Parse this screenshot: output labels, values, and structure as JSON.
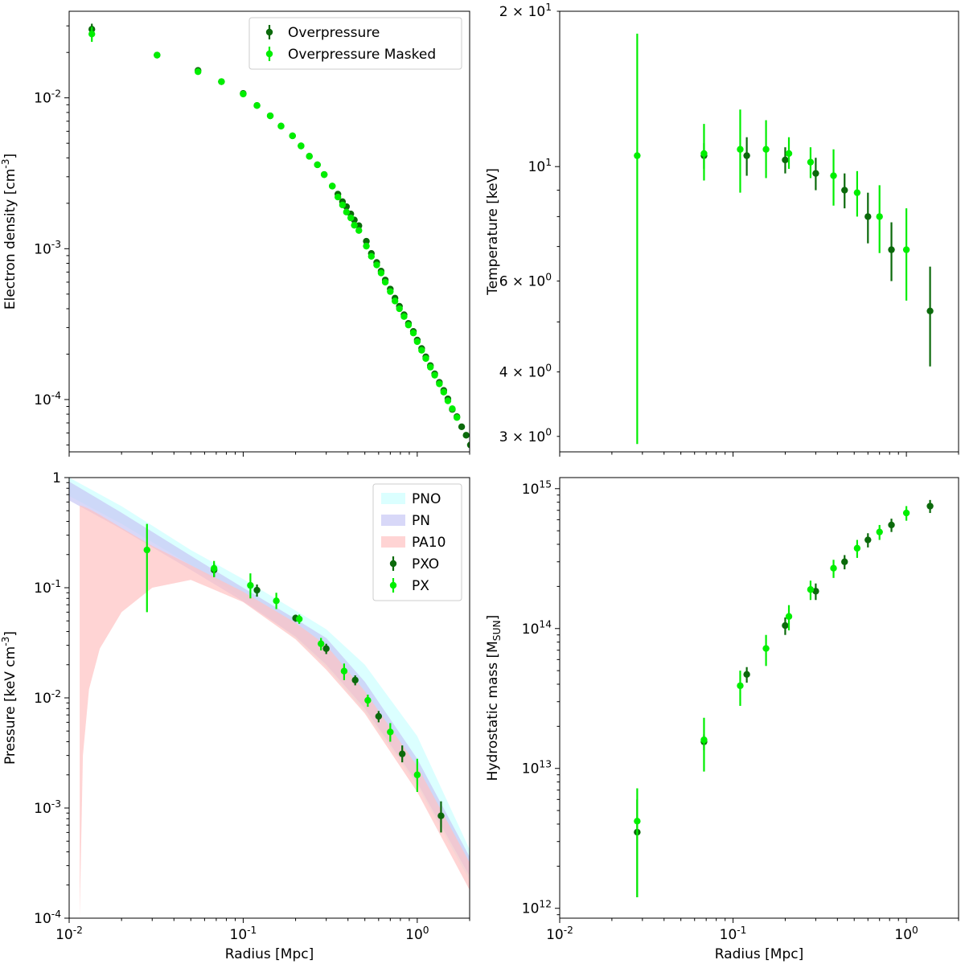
{
  "colors": {
    "dark_green": "#0b6a0b",
    "light_green": "#00ee00",
    "pno_band": "#ccffff",
    "pn_band": "#c7c7f5",
    "pa10_band": "#ffc2c2"
  },
  "chart_data": [
    {
      "panel": "top-left",
      "type": "scatter",
      "title": "",
      "xlabel": "",
      "ylabel": "Electron density [cm$^{-3}$]",
      "xscale": "log",
      "yscale": "log",
      "xlim": [
        0.01,
        2.0
      ],
      "ylim": [
        4.5e-05,
        0.0375
      ],
      "xtick_labels": [],
      "ytick_labels": [
        "10^{-2}",
        "10^{-3}",
        "10^{-4}"
      ],
      "legend": {
        "placement": "top-right",
        "entries": [
          "Overpressure",
          "Overpressure Masked"
        ]
      },
      "series": [
        {
          "name": "Overpressure",
          "color": "dark_green",
          "x": [
            0.0135,
            0.032,
            0.055,
            0.075,
            0.1,
            0.12,
            0.143,
            0.165,
            0.192,
            0.215,
            0.24,
            0.267,
            0.292,
            0.325,
            0.35,
            0.372,
            0.392,
            0.415,
            0.435,
            0.462,
            0.51,
            0.545,
            0.585,
            0.62,
            0.655,
            0.7,
            0.745,
            0.79,
            0.84,
            0.89,
            0.95,
            1.0,
            1.06,
            1.12,
            1.19,
            1.26,
            1.34,
            1.42,
            1.5,
            1.59,
            1.69,
            1.8,
            1.91,
            2.02
          ],
          "y": [
            0.0285,
            0.0192,
            0.0152,
            0.0128,
            0.0107,
            0.0089,
            0.0076,
            0.0065,
            0.0056,
            0.0048,
            0.0041,
            0.0036,
            0.0031,
            0.0026,
            0.0023,
            0.00205,
            0.0019,
            0.0017,
            0.00155,
            0.00142,
            0.00112,
            0.00093,
            0.00081,
            0.00071,
            0.00062,
            0.00054,
            0.00047,
            0.000415,
            0.000365,
            0.00032,
            0.000283,
            0.000248,
            0.000218,
            0.000192,
            0.000168,
            0.000148,
            0.00013,
            0.000115,
            0.000101,
            8.6e-05,
            7.7e-05,
            6.6e-05,
            5.8e-05,
            5e-05
          ],
          "yerr_low": [
            0.003,
            0,
            0,
            0,
            0,
            0,
            0,
            0,
            0,
            0,
            0,
            0,
            0,
            0,
            0,
            0,
            0,
            0,
            0,
            0,
            0,
            0,
            0,
            0,
            0,
            0,
            0,
            0,
            0,
            0,
            0,
            0,
            0,
            0,
            0,
            0,
            0,
            0,
            0,
            0,
            0,
            0,
            0,
            0
          ],
          "yerr_high": [
            0.0025,
            0,
            0,
            0,
            0,
            0,
            0,
            0,
            0,
            0,
            0,
            0,
            0,
            0,
            0,
            0,
            0,
            0,
            0,
            0,
            0,
            0,
            0,
            0,
            0,
            0,
            0,
            0,
            0,
            0,
            0,
            0,
            0,
            0,
            0,
            0,
            0,
            0,
            0,
            0,
            0,
            0,
            0,
            0
          ]
        },
        {
          "name": "Overpressure Masked",
          "color": "light_green",
          "x": [
            0.0135,
            0.032,
            0.055,
            0.075,
            0.1,
            0.12,
            0.143,
            0.165,
            0.192,
            0.215,
            0.24,
            0.267,
            0.292,
            0.325,
            0.35,
            0.372,
            0.392,
            0.415,
            0.435,
            0.462,
            0.51,
            0.545,
            0.585,
            0.62,
            0.655,
            0.7,
            0.745,
            0.79,
            0.84,
            0.89,
            0.95,
            1.0,
            1.06,
            1.12,
            1.19,
            1.26,
            1.34,
            1.42,
            1.5,
            1.59,
            1.69
          ],
          "y": [
            0.0265,
            0.0192,
            0.0149,
            0.0128,
            0.0106,
            0.0089,
            0.0076,
            0.0065,
            0.0056,
            0.0048,
            0.0041,
            0.0036,
            0.0031,
            0.0026,
            0.0022,
            0.00195,
            0.00175,
            0.0016,
            0.00143,
            0.00132,
            0.00104,
            0.00089,
            0.00078,
            0.00069,
            0.0006,
            0.00052,
            0.00045,
            0.0004,
            0.000355,
            0.000312,
            0.000276,
            0.000242,
            0.000212,
            0.000187,
            0.000164,
            0.000145,
            0.000127,
            0.000112,
            9.8e-05,
            8.7e-05,
            7.6e-05
          ],
          "yerr_low": [
            0.003,
            0,
            0,
            0,
            0,
            0,
            0,
            0,
            0,
            0,
            0,
            0,
            0,
            0,
            0,
            0,
            0,
            0,
            0,
            0,
            0,
            0,
            0,
            0,
            0,
            0,
            0,
            0,
            0,
            0,
            0,
            0,
            0,
            0,
            0,
            0,
            0,
            0,
            0,
            0,
            0
          ],
          "yerr_high": [
            0.003,
            0,
            0,
            0,
            0,
            0,
            0,
            0,
            0,
            0,
            0,
            0,
            0,
            0,
            0,
            0,
            0,
            0,
            0,
            0,
            0,
            0,
            0,
            0,
            0,
            0,
            0,
            0,
            0,
            0,
            0,
            0,
            0,
            0,
            0,
            0,
            0,
            0,
            0,
            0,
            0
          ]
        }
      ]
    },
    {
      "panel": "top-right",
      "type": "scatter",
      "title": "",
      "xlabel": "",
      "ylabel": "Temperature [keV]",
      "xscale": "log",
      "yscale": "log",
      "xlim": [
        0.01,
        2.0
      ],
      "ylim": [
        2.8,
        20.0
      ],
      "xtick_labels": [],
      "ytick_labels": [
        "2 × 10^1",
        "10^1",
        "6 × 10^0",
        "4 × 10^0",
        "3 × 10^0"
      ],
      "legend": null,
      "series": [
        {
          "name": "",
          "color": "dark_green",
          "x": [
            0.068,
            0.12,
            0.2,
            0.3,
            0.44,
            0.6,
            0.82,
            1.37
          ],
          "y": [
            10.5,
            10.5,
            10.3,
            9.7,
            9.0,
            8.0,
            6.9,
            5.25
          ],
          "yerr_low": [
            0.6,
            0.9,
            0.6,
            0.7,
            0.7,
            0.9,
            0.9,
            1.15
          ],
          "yerr_high": [
            0.6,
            0.9,
            0.6,
            0.7,
            0.7,
            0.9,
            0.9,
            1.15
          ]
        },
        {
          "name": "",
          "color": "light_green",
          "x": [
            0.028,
            0.068,
            0.11,
            0.155,
            0.21,
            0.28,
            0.38,
            0.52,
            0.7,
            1.0
          ],
          "y": [
            10.5,
            10.6,
            10.8,
            10.8,
            10.6,
            10.2,
            9.6,
            8.9,
            8.0,
            6.9
          ],
          "yerr_low": [
            7.6,
            1.2,
            1.9,
            1.3,
            0.7,
            0.7,
            1.2,
            0.9,
            1.2,
            1.4
          ],
          "yerr_high": [
            7.6,
            1.5,
            2.1,
            1.5,
            0.8,
            0.7,
            1.2,
            0.9,
            1.2,
            1.4
          ]
        }
      ]
    },
    {
      "panel": "bottom-left",
      "type": "scatter",
      "title": "",
      "xlabel": "Radius [Mpc]",
      "ylabel": "Pressure [keV  cm$^{-3}$]",
      "xscale": "log",
      "yscale": "log",
      "xlim": [
        0.01,
        2.0
      ],
      "ylim": [
        0.0001,
        1.0
      ],
      "xtick_labels": [
        "10^{-2}",
        "10^{-1}",
        "10^{0}"
      ],
      "ytick_labels": [
        "1",
        "10^{-1}",
        "10^{-2}",
        "10^{-3}",
        "10^{-4}"
      ],
      "legend": {
        "placement": "top-right",
        "entries": [
          "PNO",
          "PN",
          "PA10",
          "PXO",
          "PX"
        ]
      },
      "bands": [
        {
          "name": "PNO",
          "color": "pno_band",
          "x": [
            0.01,
            0.02,
            0.05,
            0.1,
            0.2,
            0.3,
            0.5,
            1.0,
            2.0
          ],
          "lower": [
            0.68,
            0.38,
            0.16,
            0.08,
            0.035,
            0.019,
            0.0075,
            0.0016,
            0.00022
          ],
          "upper": [
            1.0,
            0.55,
            0.22,
            0.12,
            0.062,
            0.042,
            0.02,
            0.0045,
            0.00042
          ]
        },
        {
          "name": "PN",
          "color": "pn_band",
          "x": [
            0.01,
            0.02,
            0.05,
            0.1,
            0.2,
            0.3,
            0.5,
            1.0,
            2.0
          ],
          "lower": [
            0.62,
            0.34,
            0.145,
            0.075,
            0.036,
            0.02,
            0.008,
            0.0017,
            0.00024
          ],
          "upper": [
            0.92,
            0.48,
            0.195,
            0.1,
            0.052,
            0.035,
            0.014,
            0.0028,
            0.00036
          ]
        },
        {
          "name": "PA10",
          "color": "pa10_band",
          "x": [
            0.0115,
            0.012,
            0.013,
            0.015,
            0.02,
            0.03,
            0.05,
            0.1,
            0.2,
            0.3,
            0.5,
            1.0,
            2.0
          ],
          "lower": [
            0.0001,
            0.003,
            0.012,
            0.028,
            0.06,
            0.1,
            0.118,
            0.074,
            0.034,
            0.018,
            0.0072,
            0.0014,
            0.00018
          ],
          "upper": [
            0.56,
            0.55,
            0.52,
            0.46,
            0.35,
            0.24,
            0.16,
            0.092,
            0.048,
            0.03,
            0.0115,
            0.0024,
            0.00032
          ]
        }
      ],
      "series": [
        {
          "name": "PXO",
          "color": "dark_green",
          "x": [
            0.068,
            0.12,
            0.2,
            0.3,
            0.44,
            0.6,
            0.82,
            1.37
          ],
          "y": [
            0.145,
            0.095,
            0.053,
            0.028,
            0.0145,
            0.0068,
            0.0031,
            0.00085
          ],
          "yerr_low": [
            0.02,
            0.012,
            0.004,
            0.003,
            0.0015,
            0.0008,
            0.0005,
            0.00025
          ],
          "yerr_high": [
            0.02,
            0.012,
            0.004,
            0.003,
            0.0015,
            0.0008,
            0.0006,
            0.0003
          ]
        },
        {
          "name": "PX",
          "color": "light_green",
          "x": [
            0.028,
            0.068,
            0.11,
            0.155,
            0.21,
            0.28,
            0.38,
            0.52,
            0.7,
            1.0
          ],
          "y": [
            0.22,
            0.15,
            0.105,
            0.076,
            0.052,
            0.031,
            0.0175,
            0.0095,
            0.0049,
            0.002
          ],
          "yerr_low": [
            0.16,
            0.025,
            0.025,
            0.012,
            0.005,
            0.004,
            0.003,
            0.0012,
            0.0009,
            0.0006
          ],
          "yerr_high": [
            0.16,
            0.025,
            0.03,
            0.014,
            0.005,
            0.004,
            0.003,
            0.0012,
            0.001,
            0.0008
          ]
        }
      ]
    },
    {
      "panel": "bottom-right",
      "type": "scatter",
      "title": "",
      "xlabel": "Radius [Mpc]",
      "ylabel": "Hydrostatic mass [M$_{SUN}$]",
      "xscale": "log",
      "yscale": "log",
      "xlim": [
        0.01,
        2.0
      ],
      "ylim": [
        850000000000.0,
        1200000000000000.0
      ],
      "xtick_labels": [
        "10^{-2}",
        "10^{-1}",
        "10^{0}"
      ],
      "ytick_labels": [
        "10^{15}",
        "10^{14}",
        "10^{13}",
        "10^{12}"
      ],
      "legend": null,
      "series": [
        {
          "name": "",
          "color": "dark_green",
          "x": [
            0.028,
            0.068,
            0.12,
            0.2,
            0.3,
            0.44,
            0.6,
            0.82,
            1.37
          ],
          "y": [
            3500000000000.0,
            15500000000000.0,
            47000000000000.0,
            105000000000000.0,
            185000000000000.0,
            300000000000000.0,
            430000000000000.0,
            550000000000000.0,
            750000000000000.0
          ],
          "yerr_low": [
            2300000000000.0,
            2000000000000.0,
            6000000000000.0,
            15000000000000.0,
            25000000000000.0,
            35000000000000.0,
            50000000000000.0,
            60000000000000.0,
            80000000000000.0
          ],
          "yerr_high": [
            2500000000000.0,
            2000000000000.0,
            6000000000000.0,
            15000000000000.0,
            25000000000000.0,
            35000000000000.0,
            50000000000000.0,
            60000000000000.0,
            80000000000000.0
          ]
        },
        {
          "name": "",
          "color": "light_green",
          "x": [
            0.028,
            0.068,
            0.11,
            0.155,
            0.21,
            0.28,
            0.38,
            0.52,
            0.7,
            1.0
          ],
          "y": [
            4200000000000.0,
            16000000000000.0,
            39000000000000.0,
            72000000000000.0,
            122000000000000.0,
            190000000000000.0,
            270000000000000.0,
            375000000000000.0,
            490000000000000.0,
            670000000000000.0
          ],
          "yerr_low": [
            3000000000000.0,
            6500000000000.0,
            11000000000000.0,
            18000000000000.0,
            25000000000000.0,
            30000000000000.0,
            40000000000000.0,
            55000000000000.0,
            60000000000000.0,
            80000000000000.0
          ],
          "yerr_high": [
            3000000000000.0,
            7000000000000.0,
            11000000000000.0,
            18000000000000.0,
            25000000000000.0,
            30000000000000.0,
            40000000000000.0,
            55000000000000.0,
            60000000000000.0,
            80000000000000.0
          ]
        }
      ]
    }
  ]
}
